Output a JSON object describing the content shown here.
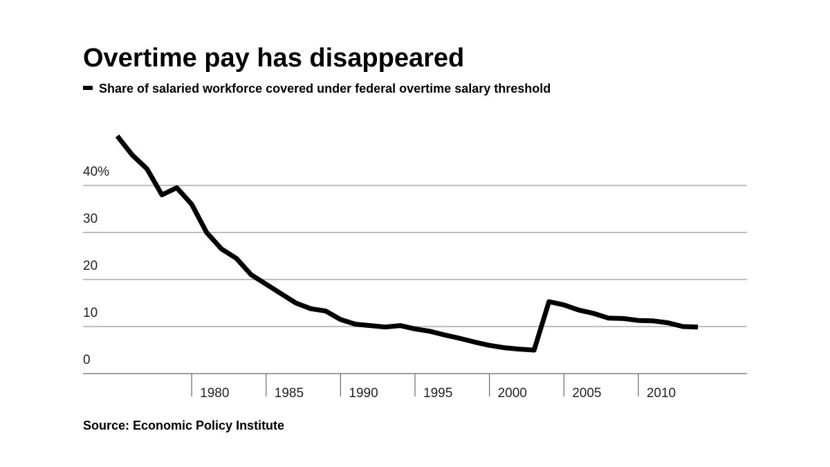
{
  "chart_data": {
    "type": "line",
    "title": "Overtime pay has disappeared",
    "source": "Source: Economic Policy Institute",
    "x": [
      1975,
      1976,
      1977,
      1978,
      1979,
      1980,
      1981,
      1982,
      1983,
      1984,
      1985,
      1986,
      1987,
      1988,
      1989,
      1990,
      1991,
      1992,
      1993,
      1994,
      1995,
      1996,
      1997,
      1998,
      1999,
      2000,
      2001,
      2002,
      2003,
      2004,
      2005,
      2006,
      2007,
      2008,
      2009,
      2010,
      2011,
      2012,
      2013,
      2014
    ],
    "series": [
      {
        "name": "Share of salaried workforce covered under federal overtime salary threshold",
        "color": "#000000",
        "values": [
          50.5,
          46.5,
          43.5,
          38,
          39.5,
          36,
          30,
          26.5,
          24.5,
          21,
          19,
          17,
          15,
          13.8,
          13.3,
          11.5,
          10.5,
          10.2,
          9.9,
          10.2,
          9.5,
          9,
          8.2,
          7.5,
          6.7,
          6,
          5.5,
          5.2,
          5,
          15.3,
          14.6,
          13.5,
          12.8,
          11.8,
          11.7,
          11.3,
          11.2,
          10.8,
          10,
          9.9
        ]
      }
    ],
    "xlim": [
      1972.7,
      2017.3
    ],
    "ylim": [
      0,
      50
    ],
    "xticks": [
      1980,
      1985,
      1990,
      1995,
      2000,
      2005,
      2010
    ],
    "yticks": [
      0,
      10,
      20,
      30,
      {
        "value": 40,
        "label": "40%"
      }
    ],
    "grid": true
  }
}
